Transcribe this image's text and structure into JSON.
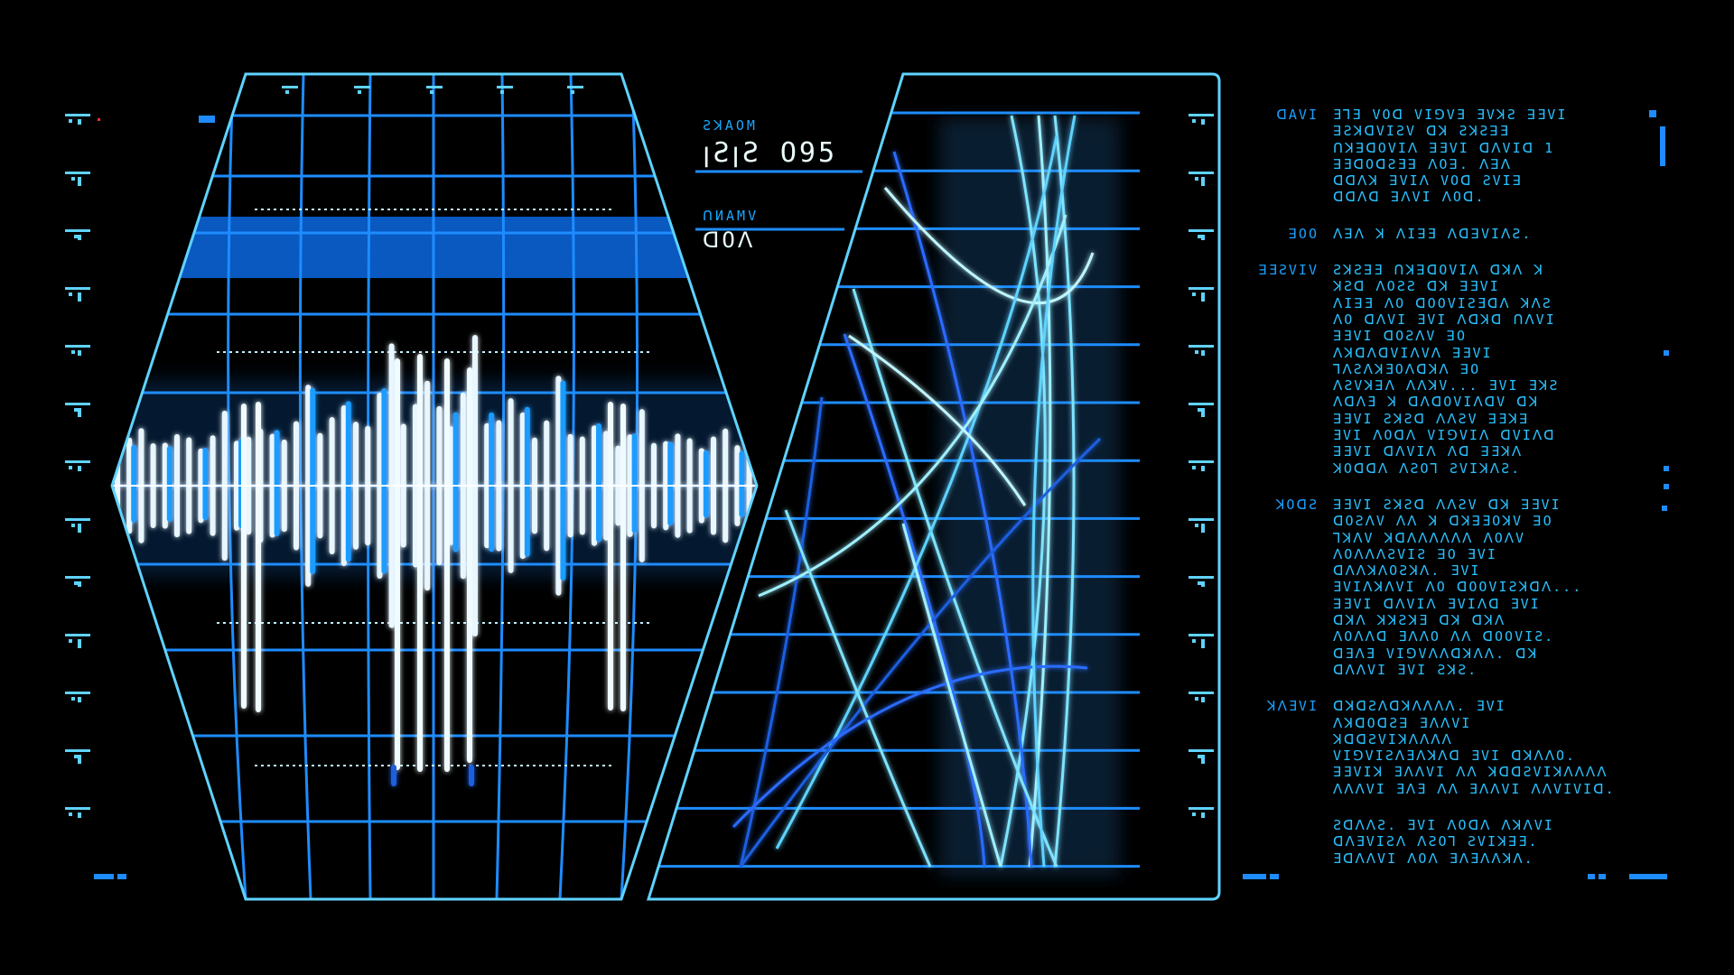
{
  "colors": {
    "background": "#000000",
    "frame": "#5fd3ff",
    "accent": "#1e8cff",
    "glow": "#ffffff",
    "text": "#29c1ff"
  },
  "readouts": [
    {
      "label": "ƧꓘAOM",
      "value": "ꞁƧꞁƧ O95"
    },
    {
      "label": "ꓵИAMV",
      "value": "ꓷOꓥ"
    }
  ],
  "text_entries": [
    {
      "key": "ꓷAVI",
      "lines": [
        "ƎꓶƎ VOꓷ VIꓨVƎ ƎVꓘƧ ꓱƎVI",
        "ꓱƧꓘꓷVIƧV ꓷꓘ ƧꓘƧꓱƎ",
        "ꓵꓘꓱꓷOVIꓥ ꓱƎVI ꓷꓥVIꓷ 1",
        "ꓱƎꓷOꓷƧƎꓱ ꓥOꓱ. ꓥꓱꓥ",
        "ꓷꓷꓥꓘ ꓱVIꓥ VOꓷ ƧVIꓱ",
        "ꓷꓷꓥꓷ ꓱꓥVI ꓥOꓷ."
      ]
    },
    {
      "key": "ꓱOO",
      "lines": [
        "ꓥꓱꓥ ꓘ ꓥIꓱƎ ꓥꓷꓱVIꓥƧ."
      ]
    },
    {
      "key": "ꓱƎƧVIV",
      "lines": [
        "ƧꓘƧꓱƎ ꓵꓘꓱꓷOVIꓥ ꓷꓘꓥ ꓘ",
        "ꓘƧꓷ ꓥOƧƧ ꓷꓘ ꓱƎVI",
        "ꓥIꓱƎ ꓥO ꓷOOVIƧƎꓷꓥ ꓘꓥƧ",
        "ꓥO ꓷꓥVI ƎVI ꓥꓷꓘꓷ ꓵꓥVI",
        "ꓱƎVI ꓷOƧꓥV ꓱO",
        "ꓥꓘꓷꓥꓷVIꓥVꓥ ꓱƎVI",
        "ꓶꓥƧꓥꓘƎOꓥꓷꓘꓥ ꓱO",
        "ꓥƧVꓘꓱꓥ ꓥꓥꓘV... ƎVI ƎꓘƧ",
        "ꓥꓷꓥƎ ꓘ ꓷꓥꓷOVIꓥꓷV ꓷꓘ",
        "ꓱƎVI ƧꓘƧꓷ ꓥꓥƧV ꓱƎꓘꓱ",
        "ƎVI ꓥOꓷꓥ VIꓨVIꓥ ꓷVIꓥꓷ",
        "ꓱƎVI ꓷꓥVIꓥ ꓥꓷ ꓱƎꓘꓥ",
        "ꓘOꓷꓷꓥ ꓥƧOꓶ ƧVIꓘꓥƧ."
      ]
    },
    {
      "key": "ꓘOꓷƧ",
      "lines": [
        "ꓱƎVI ƧꓘƧꓷ ꓥꓥƧV ꓷꓘ ꓱƎVI",
        "ꓷOƧꓥV ꓥꓥ ꓘ ꓷꓘꓱƎOꓘV ꓱO",
        "ꓶꓘꓥV ꓘꓷꓥꓥꓥꓥꓥꓥ ꓥOꓥV",
        "ꓥOꓥꓥꓥƧVIƧ ꓱO ƎVI",
        "ꓷꓥꓥꓘꓥOƧꓘꓥ. ƎVI",
        "ƎVIꓥꓘꓥVI ꓥO ꓷOOVIƧꓘꓷꓥ...",
        "ꓱƎVI ꓷꓥVIꓥ ƎVIꓥꓷ ƎVI",
        "ꓷꓘꓥ ꓘꓘƧꓘƎ ꓷꓘ ꓷꓘꓥ",
        "ꓥOꓥꓥꓷ ƎꓥꓥO ꓥꓥ ꓷOOVIƧ.",
        "ꓷƎꓥƎ VIꓨVꓥꓥꓷꓘꓥꓥ. ꓷꓘ",
        "ꓷꓥꓥVI ƎVI ƧꓘƧ."
      ]
    },
    {
      "key": "ꓘꓥƎVI",
      "lines": [
        "ꓷꓘꓷƧꓥꓷꓘꓥꓥꓥꓥ. ƎVI",
        "ꓥꓘꓷOꓷƧꓱ ƎꓥꓥVI",
        "ꓘꓷꓷƧVIꓘꓥꓥꓥꓥ",
        "VIꓨVIƧꓥƎꓥꓘꓥꓷ ƎVI ꓷꓘꓥꓥO.",
        "ꓱƎVIꓘ ƎꓥꓥVI ꓥꓥ ꓘꓷꓷƧVIꓘꓥꓥꓥꓥ",
        "ꓥꓥꓥVI ƎꓥƎ ꓥꓥ ƎꓥꓥVI ꓥꓥVIVIꓷ."
      ]
    },
    {
      "key": "",
      "lines": [
        "ƧꓷꓥꓥƧ. ƎVI ꓥOꓷꓥ ꓥꓘꓥVI",
        "ꓷꓥƎVIƧꓥ ꓥƧOꓶ ƧVIꓘꓱƎ.",
        "ƎꓷꓥꓥVI ꓥOꓥ ƎꓥƎꓥꓥꓘꓥ."
      ]
    }
  ]
}
